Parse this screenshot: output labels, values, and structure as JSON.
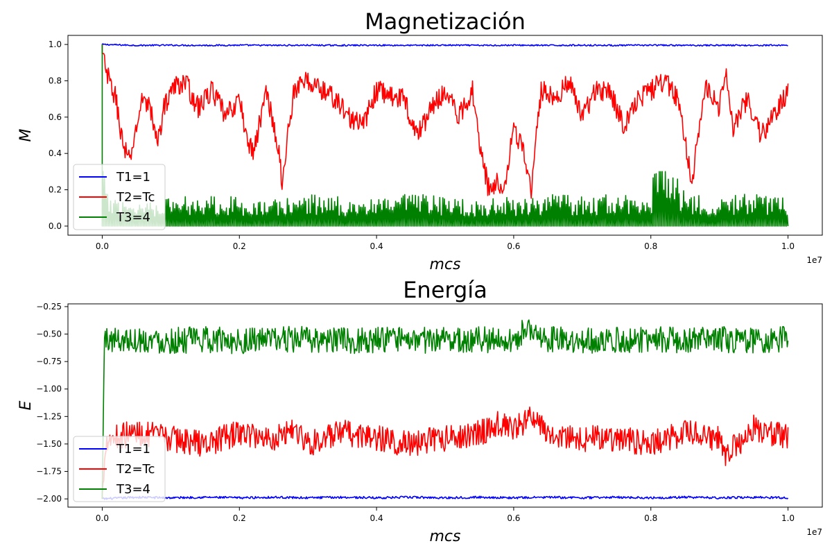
{
  "figure": {
    "offset_label": "1e7"
  },
  "chart_data": [
    {
      "type": "line",
      "title": "Magnetización",
      "xlabel": "mcs",
      "ylabel": "M",
      "xlim": [
        -0.05,
        1.05
      ],
      "ylim": [
        -0.05,
        1.05
      ],
      "x_scale_offset": "1e7",
      "xticks": [
        0.0,
        0.2,
        0.4,
        0.6,
        0.8,
        1.0
      ],
      "xtick_labels": [
        "0.0",
        "0.2",
        "0.4",
        "0.6",
        "0.8",
        "1.0"
      ],
      "yticks": [
        0.0,
        0.2,
        0.4,
        0.6,
        0.8,
        1.0
      ],
      "ytick_labels": [
        "0.0",
        "0.2",
        "0.4",
        "0.6",
        "0.8",
        "1.0"
      ],
      "legend_placement": "lower-left",
      "grid": false,
      "series": [
        {
          "name": "T1=1",
          "color": "#0000ff",
          "x": [
            0.0,
            0.05,
            0.1,
            0.15,
            0.2,
            0.25,
            0.3,
            0.35,
            0.4,
            0.45,
            0.5,
            0.55,
            0.6,
            0.65,
            0.7,
            0.75,
            0.8,
            0.85,
            0.9,
            0.95,
            1.0
          ],
          "y": [
            1.0,
            0.995,
            0.996,
            0.995,
            0.996,
            0.995,
            0.996,
            0.995,
            0.996,
            0.995,
            0.996,
            0.995,
            0.996,
            0.995,
            0.996,
            0.995,
            0.996,
            0.995,
            0.996,
            0.995,
            0.996
          ]
        },
        {
          "name": "T2=Tc",
          "color": "#ff0000",
          "x": [
            0.0,
            0.005,
            0.01,
            0.02,
            0.03,
            0.04,
            0.05,
            0.06,
            0.07,
            0.08,
            0.09,
            0.1,
            0.12,
            0.14,
            0.16,
            0.18,
            0.2,
            0.21,
            0.22,
            0.24,
            0.26,
            0.262,
            0.27,
            0.28,
            0.3,
            0.32,
            0.34,
            0.36,
            0.38,
            0.4,
            0.42,
            0.44,
            0.46,
            0.48,
            0.5,
            0.52,
            0.54,
            0.555,
            0.565,
            0.575,
            0.585,
            0.6,
            0.615,
            0.625,
            0.64,
            0.66,
            0.68,
            0.7,
            0.72,
            0.74,
            0.76,
            0.78,
            0.8,
            0.82,
            0.84,
            0.86,
            0.87,
            0.88,
            0.9,
            0.91,
            0.92,
            0.94,
            0.96,
            0.98,
            1.0
          ],
          "y": [
            1.0,
            0.85,
            0.8,
            0.7,
            0.45,
            0.35,
            0.55,
            0.72,
            0.65,
            0.45,
            0.65,
            0.75,
            0.8,
            0.65,
            0.75,
            0.6,
            0.7,
            0.5,
            0.4,
            0.75,
            0.35,
            0.18,
            0.5,
            0.75,
            0.8,
            0.75,
            0.7,
            0.6,
            0.55,
            0.75,
            0.72,
            0.7,
            0.5,
            0.65,
            0.75,
            0.6,
            0.75,
            0.35,
            0.18,
            0.25,
            0.2,
            0.55,
            0.4,
            0.18,
            0.75,
            0.7,
            0.8,
            0.6,
            0.75,
            0.75,
            0.55,
            0.7,
            0.75,
            0.8,
            0.7,
            0.25,
            0.55,
            0.75,
            0.65,
            0.85,
            0.55,
            0.7,
            0.5,
            0.6,
            0.75
          ]
        },
        {
          "name": "T3=4",
          "color": "#008000",
          "x": [
            0.0,
            0.002,
            0.004,
            0.05,
            0.1,
            0.15,
            0.2,
            0.25,
            0.3,
            0.35,
            0.4,
            0.45,
            0.5,
            0.55,
            0.6,
            0.65,
            0.7,
            0.75,
            0.8,
            0.81,
            0.85,
            0.9,
            0.95,
            1.0
          ],
          "y": [
            1.0,
            0.4,
            0.1,
            0.08,
            0.09,
            0.1,
            0.09,
            0.08,
            0.1,
            0.09,
            0.08,
            0.1,
            0.09,
            0.08,
            0.09,
            0.1,
            0.09,
            0.1,
            0.08,
            0.29,
            0.1,
            0.09,
            0.1,
            0.09
          ]
        }
      ]
    },
    {
      "type": "line",
      "title": "Energía",
      "xlabel": "mcs",
      "ylabel": "E",
      "xlim": [
        -0.05,
        1.05
      ],
      "ylim": [
        -2.075,
        -0.225
      ],
      "x_scale_offset": "1e7",
      "xticks": [
        0.0,
        0.2,
        0.4,
        0.6,
        0.8,
        1.0
      ],
      "xtick_labels": [
        "0.0",
        "0.2",
        "0.4",
        "0.6",
        "0.8",
        "1.0"
      ],
      "yticks": [
        -2.0,
        -1.75,
        -1.5,
        -1.25,
        -1.0,
        -0.75,
        -0.5,
        -0.25
      ],
      "ytick_labels": [
        "−2.00",
        "−1.75",
        "−1.50",
        "−1.25",
        "−1.00",
        "−0.75",
        "−0.50",
        "−0.25"
      ],
      "legend_placement": "lower-left",
      "grid": false,
      "series": [
        {
          "name": "T1=1",
          "color": "#0000ff",
          "x": [
            0.0,
            0.05,
            0.1,
            0.15,
            0.2,
            0.25,
            0.3,
            0.35,
            0.4,
            0.45,
            0.5,
            0.55,
            0.6,
            0.65,
            0.7,
            0.75,
            0.8,
            0.85,
            0.9,
            0.95,
            1.0
          ],
          "y": [
            -2.0,
            -1.985,
            -1.99,
            -1.985,
            -1.99,
            -1.985,
            -1.99,
            -1.985,
            -1.99,
            -1.985,
            -1.99,
            -1.985,
            -1.99,
            -1.985,
            -1.99,
            -1.985,
            -1.99,
            -1.985,
            -1.99,
            -1.985,
            -1.99
          ]
        },
        {
          "name": "T2=Tc",
          "color": "#ff0000",
          "x": [
            0.0,
            0.005,
            0.05,
            0.1,
            0.15,
            0.2,
            0.25,
            0.28,
            0.3,
            0.35,
            0.4,
            0.45,
            0.5,
            0.55,
            0.58,
            0.6,
            0.62,
            0.65,
            0.7,
            0.75,
            0.8,
            0.85,
            0.9,
            0.91,
            0.95,
            1.0
          ],
          "y": [
            -2.0,
            -1.45,
            -1.4,
            -1.45,
            -1.5,
            -1.4,
            -1.45,
            -1.35,
            -1.5,
            -1.4,
            -1.45,
            -1.5,
            -1.45,
            -1.4,
            -1.3,
            -1.4,
            -1.25,
            -1.4,
            -1.45,
            -1.45,
            -1.5,
            -1.4,
            -1.45,
            -1.6,
            -1.35,
            -1.45
          ]
        },
        {
          "name": "T3=4",
          "color": "#008000",
          "x": [
            0.0,
            0.003,
            0.05,
            0.1,
            0.15,
            0.2,
            0.25,
            0.3,
            0.35,
            0.4,
            0.45,
            0.5,
            0.55,
            0.6,
            0.62,
            0.65,
            0.7,
            0.75,
            0.8,
            0.85,
            0.9,
            0.95,
            1.0
          ],
          "y": [
            -2.0,
            -0.55,
            -0.55,
            -0.56,
            -0.55,
            -0.56,
            -0.55,
            -0.55,
            -0.56,
            -0.55,
            -0.56,
            -0.55,
            -0.55,
            -0.56,
            -0.45,
            -0.55,
            -0.56,
            -0.55,
            -0.55,
            -0.56,
            -0.55,
            -0.56,
            -0.55
          ]
        }
      ]
    }
  ]
}
